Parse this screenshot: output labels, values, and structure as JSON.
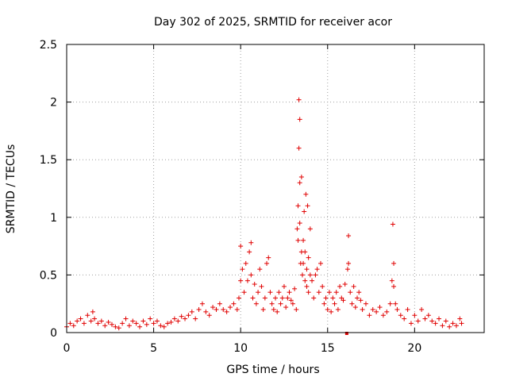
{
  "chart_data": {
    "type": "scatter",
    "title": "Day 302 of 2025, SRMTID for receiver acor",
    "xlabel": "GPS time / hours",
    "ylabel": "SRMTID / TECUs",
    "xlim": [
      0,
      24
    ],
    "ylim": [
      0,
      2.5
    ],
    "xticks": [
      0,
      5,
      10,
      15,
      20
    ],
    "yticks": [
      0,
      0.5,
      1,
      1.5,
      2,
      2.5
    ],
    "xtick_labels": [
      "0",
      "5",
      "10",
      "15",
      "20"
    ],
    "ytick_labels": [
      "0",
      "0.5",
      "1",
      "1.5",
      "2",
      "2.5"
    ],
    "grid": true,
    "marker": "+",
    "color": "#e00000",
    "series": [
      {
        "name": "SRMTID",
        "x": [
          0.0,
          0.2,
          0.4,
          0.6,
          0.8,
          1.0,
          1.2,
          1.4,
          1.5,
          1.6,
          1.8,
          2.0,
          2.2,
          2.4,
          2.6,
          2.8,
          3.0,
          3.2,
          3.4,
          3.6,
          3.8,
          4.0,
          4.2,
          4.4,
          4.6,
          4.8,
          5.0,
          5.2,
          5.4,
          5.6,
          5.8,
          6.0,
          6.2,
          6.4,
          6.6,
          6.8,
          7.0,
          7.2,
          7.4,
          7.6,
          7.8,
          8.0,
          8.2,
          8.4,
          8.6,
          8.8,
          9.0,
          9.2,
          9.4,
          9.6,
          9.8,
          9.9,
          10.0,
          10.0,
          10.1,
          10.2,
          10.3,
          10.4,
          10.5,
          10.6,
          10.6,
          10.7,
          10.8,
          10.9,
          11.0,
          11.1,
          11.2,
          11.3,
          11.4,
          11.5,
          11.6,
          11.7,
          11.8,
          11.9,
          12.0,
          12.1,
          12.2,
          12.3,
          12.4,
          12.5,
          12.6,
          12.7,
          12.8,
          12.9,
          13.0,
          13.1,
          13.2,
          13.25,
          13.3,
          13.3,
          13.35,
          13.35,
          13.4,
          13.4,
          13.4,
          13.45,
          13.5,
          13.5,
          13.55,
          13.6,
          13.6,
          13.65,
          13.7,
          13.7,
          13.75,
          13.8,
          13.8,
          13.85,
          13.9,
          13.9,
          14.0,
          14.0,
          14.1,
          14.2,
          14.3,
          14.4,
          14.5,
          14.6,
          14.7,
          14.8,
          14.9,
          15.0,
          15.1,
          15.2,
          15.3,
          15.4,
          15.5,
          15.6,
          15.7,
          15.8,
          15.9,
          16.0,
          16.1,
          16.15,
          16.2,
          16.2,
          16.3,
          16.4,
          16.5,
          16.6,
          16.7,
          16.8,
          16.9,
          17.0,
          17.2,
          17.4,
          17.6,
          17.8,
          18.0,
          18.2,
          18.4,
          18.6,
          18.7,
          18.75,
          18.8,
          18.8,
          18.9,
          19.0,
          19.2,
          19.4,
          19.6,
          19.8,
          20.0,
          20.2,
          20.4,
          20.6,
          20.8,
          21.0,
          21.2,
          21.4,
          21.6,
          21.8,
          22.0,
          22.2,
          22.4,
          22.6,
          22.7
        ],
        "y": [
          0.05,
          0.08,
          0.06,
          0.1,
          0.12,
          0.08,
          0.15,
          0.1,
          0.18,
          0.12,
          0.08,
          0.1,
          0.06,
          0.09,
          0.07,
          0.05,
          0.04,
          0.08,
          0.12,
          0.06,
          0.1,
          0.08,
          0.05,
          0.1,
          0.07,
          0.12,
          0.08,
          0.1,
          0.06,
          0.05,
          0.08,
          0.09,
          0.12,
          0.1,
          0.14,
          0.12,
          0.15,
          0.18,
          0.12,
          0.2,
          0.25,
          0.18,
          0.15,
          0.22,
          0.2,
          0.25,
          0.2,
          0.18,
          0.22,
          0.25,
          0.2,
          0.3,
          0.75,
          0.45,
          0.55,
          0.35,
          0.6,
          0.45,
          0.7,
          0.78,
          0.5,
          0.3,
          0.42,
          0.25,
          0.35,
          0.55,
          0.4,
          0.2,
          0.3,
          0.6,
          0.65,
          0.35,
          0.25,
          0.2,
          0.3,
          0.18,
          0.35,
          0.25,
          0.3,
          0.4,
          0.22,
          0.3,
          0.35,
          0.28,
          0.25,
          0.38,
          0.2,
          0.9,
          1.1,
          0.8,
          2.02,
          1.6,
          1.85,
          1.3,
          0.95,
          0.6,
          1.35,
          0.7,
          0.5,
          0.6,
          0.8,
          1.05,
          0.45,
          0.7,
          1.2,
          0.55,
          0.4,
          1.1,
          0.65,
          0.35,
          0.9,
          0.5,
          0.45,
          0.3,
          0.5,
          0.55,
          0.35,
          0.6,
          0.4,
          0.25,
          0.3,
          0.2,
          0.35,
          0.18,
          0.3,
          0.25,
          0.35,
          0.2,
          0.4,
          0.3,
          0.28,
          0.42,
          0.0,
          0.55,
          0.84,
          0.6,
          0.35,
          0.25,
          0.4,
          0.22,
          0.3,
          0.35,
          0.28,
          0.2,
          0.25,
          0.15,
          0.2,
          0.18,
          0.22,
          0.15,
          0.18,
          0.25,
          0.45,
          0.94,
          0.6,
          0.4,
          0.25,
          0.2,
          0.15,
          0.12,
          0.2,
          0.08,
          0.15,
          0.1,
          0.2,
          0.12,
          0.15,
          0.1,
          0.08,
          0.12,
          0.06,
          0.1,
          0.05,
          0.08,
          0.06,
          0.12,
          0.08
        ]
      }
    ]
  }
}
